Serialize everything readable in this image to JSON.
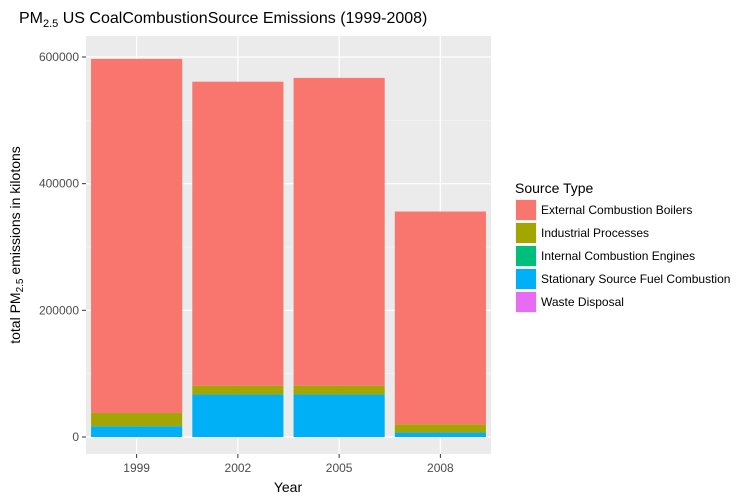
{
  "chart_data": {
    "type": "bar",
    "stacked": true,
    "title_prefix": "PM",
    "title_sub": "2.5",
    "title_rest": " US CoalCombustionSource Emissions (1999-2008)",
    "xlabel": "Year",
    "ylabel_prefix": "total PM",
    "ylabel_sub": "2.5",
    "ylabel_rest": " emissions in kilotons",
    "categories": [
      "1999",
      "2002",
      "2005",
      "2008"
    ],
    "ylim": [
      0,
      630000
    ],
    "yticks": [
      0,
      200000,
      400000,
      600000
    ],
    "ytick_labels": [
      "0",
      "200000",
      "400000",
      "600000"
    ],
    "grid": true,
    "legend": {
      "title": "Source Type",
      "position": "right"
    },
    "series": [
      {
        "name": "Stationary Source Fuel Combustion",
        "color": "#00B0F6",
        "values": [
          17000,
          67000,
          67000,
          7000
        ]
      },
      {
        "name": "Industrial Processes",
        "color": "#A3A500",
        "values": [
          21000,
          14000,
          14000,
          13000
        ]
      },
      {
        "name": "Internal Combustion Engines",
        "color": "#00BF7D",
        "values": [
          0,
          0,
          0,
          0
        ]
      },
      {
        "name": "Waste Disposal",
        "color": "#E76BF3",
        "values": [
          0,
          0,
          0,
          0
        ]
      },
      {
        "name": "External Combustion Boilers",
        "color": "#F8766D",
        "values": [
          559000,
          480000,
          486000,
          336000
        ]
      }
    ],
    "legend_order": [
      "External Combustion Boilers",
      "Industrial Processes",
      "Internal Combustion Engines",
      "Stationary Source Fuel Combustion",
      "Waste Disposal"
    ]
  }
}
